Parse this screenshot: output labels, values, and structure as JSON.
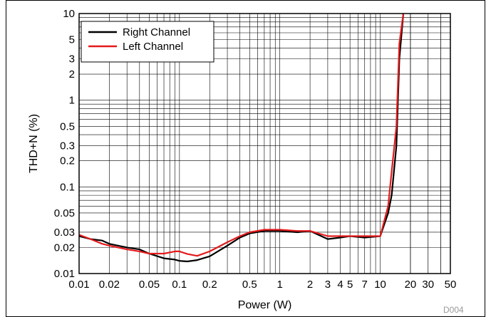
{
  "chart_data": {
    "type": "line",
    "xlabel": "Power (W)",
    "ylabel": "THD+N (%)",
    "x_scale": "log",
    "y_scale": "log",
    "xlim": [
      0.01,
      50
    ],
    "ylim": [
      0.01,
      10
    ],
    "grid": true,
    "legend_position": "top-left",
    "x_tick_labels": [
      "0.01",
      "0.02",
      "0.05",
      "0.1",
      "0.2",
      "0.5",
      "1",
      "2",
      "3",
      "4",
      "5",
      "7",
      "10",
      "20",
      "30",
      "50"
    ],
    "y_tick_labels": [
      "0.01",
      "0.02",
      "0.03",
      "0.05",
      "0.1",
      "0.2",
      "0.3",
      "0.5",
      "1",
      "2",
      "3",
      "5",
      "10"
    ],
    "series": [
      {
        "name": "Right Channel",
        "color": "#000000",
        "x": [
          0.01,
          0.013,
          0.017,
          0.02,
          0.03,
          0.04,
          0.05,
          0.07,
          0.09,
          0.1,
          0.12,
          0.15,
          0.2,
          0.3,
          0.4,
          0.5,
          0.7,
          1,
          1.5,
          2,
          3,
          4,
          5,
          7,
          10,
          12,
          13,
          14.5,
          15.5,
          17
        ],
        "y": [
          0.027,
          0.025,
          0.024,
          0.022,
          0.02,
          0.019,
          0.017,
          0.015,
          0.0145,
          0.014,
          0.0138,
          0.0143,
          0.0158,
          0.021,
          0.026,
          0.029,
          0.031,
          0.031,
          0.03,
          0.031,
          0.025,
          0.026,
          0.027,
          0.026,
          0.027,
          0.05,
          0.08,
          0.3,
          3,
          10
        ]
      },
      {
        "name": "Left Channel",
        "color": "#e41a1c",
        "x": [
          0.01,
          0.013,
          0.017,
          0.02,
          0.03,
          0.04,
          0.05,
          0.07,
          0.09,
          0.1,
          0.12,
          0.15,
          0.2,
          0.3,
          0.4,
          0.5,
          0.7,
          1,
          1.5,
          2,
          3,
          4,
          5,
          7,
          10,
          12,
          13,
          14.5,
          15.5,
          17
        ],
        "y": [
          0.028,
          0.025,
          0.022,
          0.021,
          0.019,
          0.018,
          0.017,
          0.017,
          0.018,
          0.018,
          0.0168,
          0.016,
          0.018,
          0.023,
          0.027,
          0.03,
          0.032,
          0.032,
          0.031,
          0.031,
          0.027,
          0.027,
          0.027,
          0.027,
          0.027,
          0.06,
          0.15,
          0.5,
          4.5,
          10
        ]
      }
    ]
  },
  "figure_code": "D004"
}
